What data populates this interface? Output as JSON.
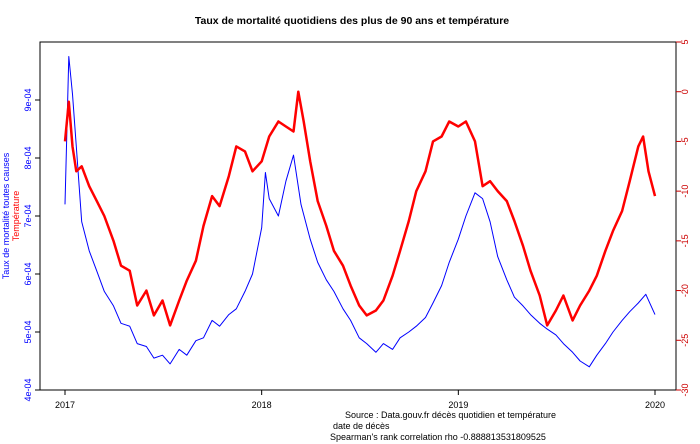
{
  "chart_data": {
    "type": "line",
    "title": "Taux de mortalité quotidiens des plus de 90 ans et température",
    "xlabel": "date de décès",
    "ylabel_left": "Taux de mortalité toutes causes",
    "ylabel_right": "Température",
    "notes": {
      "source": "Source : Data.gouv.fr décès quotidien et température",
      "correlation": "Spearman's rank correlation rho -0.888813531809525"
    },
    "x_ticks": [
      "2017",
      "2018",
      "2019",
      "2020"
    ],
    "xlim": [
      "2017-01-01",
      "2020-01-01"
    ],
    "ylim_left": [
      0.0004,
      0.001
    ],
    "y_ticks_left": [
      "4e-04",
      "5e-04",
      "6e-04",
      "7e-04",
      "8e-04",
      "9e-04"
    ],
    "ylim_right": [
      -30,
      5
    ],
    "y_ticks_right": [
      "5",
      "0",
      "-5",
      "-10",
      "-15",
      "-20",
      "-25",
      "-30"
    ],
    "colors": {
      "mortality": "#0000ff",
      "temperature": "#ff0000",
      "right_axis": "#cc0000"
    },
    "series": [
      {
        "name": "Taux de mortalité toutes causes",
        "axis": "left",
        "color": "#0000ff",
        "x": [
          "2017-01-01",
          "2017-01-08",
          "2017-01-15",
          "2017-01-22",
          "2017-02-01",
          "2017-02-15",
          "2017-03-01",
          "2017-03-15",
          "2017-04-01",
          "2017-04-15",
          "2017-05-01",
          "2017-05-15",
          "2017-06-01",
          "2017-06-15",
          "2017-07-01",
          "2017-07-15",
          "2017-08-01",
          "2017-08-15",
          "2017-09-01",
          "2017-09-15",
          "2017-10-01",
          "2017-10-15",
          "2017-11-01",
          "2017-11-15",
          "2017-12-01",
          "2017-12-15",
          "2018-01-01",
          "2018-01-08",
          "2018-01-15",
          "2018-02-01",
          "2018-02-15",
          "2018-03-01",
          "2018-03-15",
          "2018-04-01",
          "2018-04-15",
          "2018-05-01",
          "2018-05-15",
          "2018-06-01",
          "2018-06-15",
          "2018-07-01",
          "2018-07-15",
          "2018-08-01",
          "2018-08-15",
          "2018-09-01",
          "2018-09-15",
          "2018-10-01",
          "2018-10-15",
          "2018-11-01",
          "2018-11-15",
          "2018-12-01",
          "2018-12-15",
          "2019-01-01",
          "2019-01-15",
          "2019-02-01",
          "2019-02-15",
          "2019-03-01",
          "2019-03-15",
          "2019-04-01",
          "2019-04-15",
          "2019-05-01",
          "2019-05-15",
          "2019-06-01",
          "2019-06-15",
          "2019-07-01",
          "2019-07-15",
          "2019-08-01",
          "2019-08-15",
          "2019-09-01",
          "2019-09-15",
          "2019-10-01",
          "2019-10-15",
          "2019-11-01",
          "2019-11-15",
          "2019-12-01",
          "2019-12-15",
          "2020-01-01"
        ],
        "values": [
          0.00072,
          0.000975,
          0.00091,
          0.00082,
          0.00069,
          0.00064,
          0.000605,
          0.00057,
          0.000545,
          0.000515,
          0.00051,
          0.00048,
          0.000475,
          0.000455,
          0.00046,
          0.000445,
          0.00047,
          0.00046,
          0.000485,
          0.00049,
          0.00052,
          0.00051,
          0.00053,
          0.00054,
          0.00057,
          0.0006,
          0.00068,
          0.000775,
          0.00073,
          0.0007,
          0.00076,
          0.000805,
          0.00072,
          0.00066,
          0.00062,
          0.00059,
          0.00057,
          0.00054,
          0.00052,
          0.00049,
          0.00048,
          0.000465,
          0.00048,
          0.00047,
          0.00049,
          0.0005,
          0.00051,
          0.000525,
          0.00055,
          0.00058,
          0.00062,
          0.00066,
          0.0007,
          0.00074,
          0.00073,
          0.00069,
          0.00063,
          0.00059,
          0.00056,
          0.000545,
          0.00053,
          0.000515,
          0.000505,
          0.000495,
          0.00048,
          0.000465,
          0.00045,
          0.00044,
          0.00046,
          0.00048,
          0.0005,
          0.00052,
          0.000535,
          0.00055,
          0.000565,
          0.00053
        ]
      },
      {
        "name": "Température",
        "axis": "right",
        "color": "#ff0000",
        "x": [
          "2017-01-01",
          "2017-01-08",
          "2017-01-15",
          "2017-01-22",
          "2017-02-01",
          "2017-02-15",
          "2017-03-01",
          "2017-03-15",
          "2017-04-01",
          "2017-04-15",
          "2017-05-01",
          "2017-05-15",
          "2017-06-01",
          "2017-06-15",
          "2017-07-01",
          "2017-07-15",
          "2017-08-01",
          "2017-08-15",
          "2017-09-01",
          "2017-09-15",
          "2017-10-01",
          "2017-10-15",
          "2017-11-01",
          "2017-11-15",
          "2017-12-01",
          "2017-12-15",
          "2018-01-01",
          "2018-01-15",
          "2018-02-01",
          "2018-02-15",
          "2018-03-01",
          "2018-03-10",
          "2018-03-20",
          "2018-04-01",
          "2018-04-15",
          "2018-05-01",
          "2018-05-15",
          "2018-06-01",
          "2018-06-15",
          "2018-07-01",
          "2018-07-15",
          "2018-08-01",
          "2018-08-15",
          "2018-09-01",
          "2018-09-15",
          "2018-10-01",
          "2018-10-15",
          "2018-11-01",
          "2018-11-15",
          "2018-12-01",
          "2018-12-15",
          "2019-01-01",
          "2019-01-15",
          "2019-02-01",
          "2019-02-15",
          "2019-03-01",
          "2019-03-15",
          "2019-04-01",
          "2019-04-15",
          "2019-05-01",
          "2019-05-15",
          "2019-06-01",
          "2019-06-15",
          "2019-07-01",
          "2019-07-15",
          "2019-08-01",
          "2019-08-15",
          "2019-09-01",
          "2019-09-15",
          "2019-10-01",
          "2019-10-15",
          "2019-11-01",
          "2019-11-15",
          "2019-12-01",
          "2019-12-10",
          "2019-12-20",
          "2020-01-01"
        ],
        "values": [
          -5,
          -1,
          -5.5,
          -8,
          -7.5,
          -9.5,
          -11,
          -12.5,
          -15,
          -17.5,
          -18,
          -21.5,
          -20,
          -22.5,
          -21,
          -23.5,
          -21,
          -19,
          -17,
          -13.5,
          -10.5,
          -11.5,
          -8.5,
          -5.5,
          -6,
          -8,
          -7,
          -4.5,
          -3,
          -3.5,
          -4,
          0,
          -3,
          -7,
          -11,
          -13.5,
          -16,
          -17.5,
          -19.5,
          -21.5,
          -22.5,
          -22,
          -21,
          -18.5,
          -16,
          -13,
          -10,
          -8,
          -5,
          -4.5,
          -3,
          -3.5,
          -3,
          -5,
          -9.5,
          -9,
          -10,
          -11,
          -13,
          -15.5,
          -18,
          -20.5,
          -23.5,
          -22,
          -20.5,
          -23,
          -21.5,
          -20,
          -18.5,
          -16,
          -14,
          -12,
          -9,
          -5.5,
          -4.5,
          -8,
          -10.5
        ]
      }
    ]
  }
}
